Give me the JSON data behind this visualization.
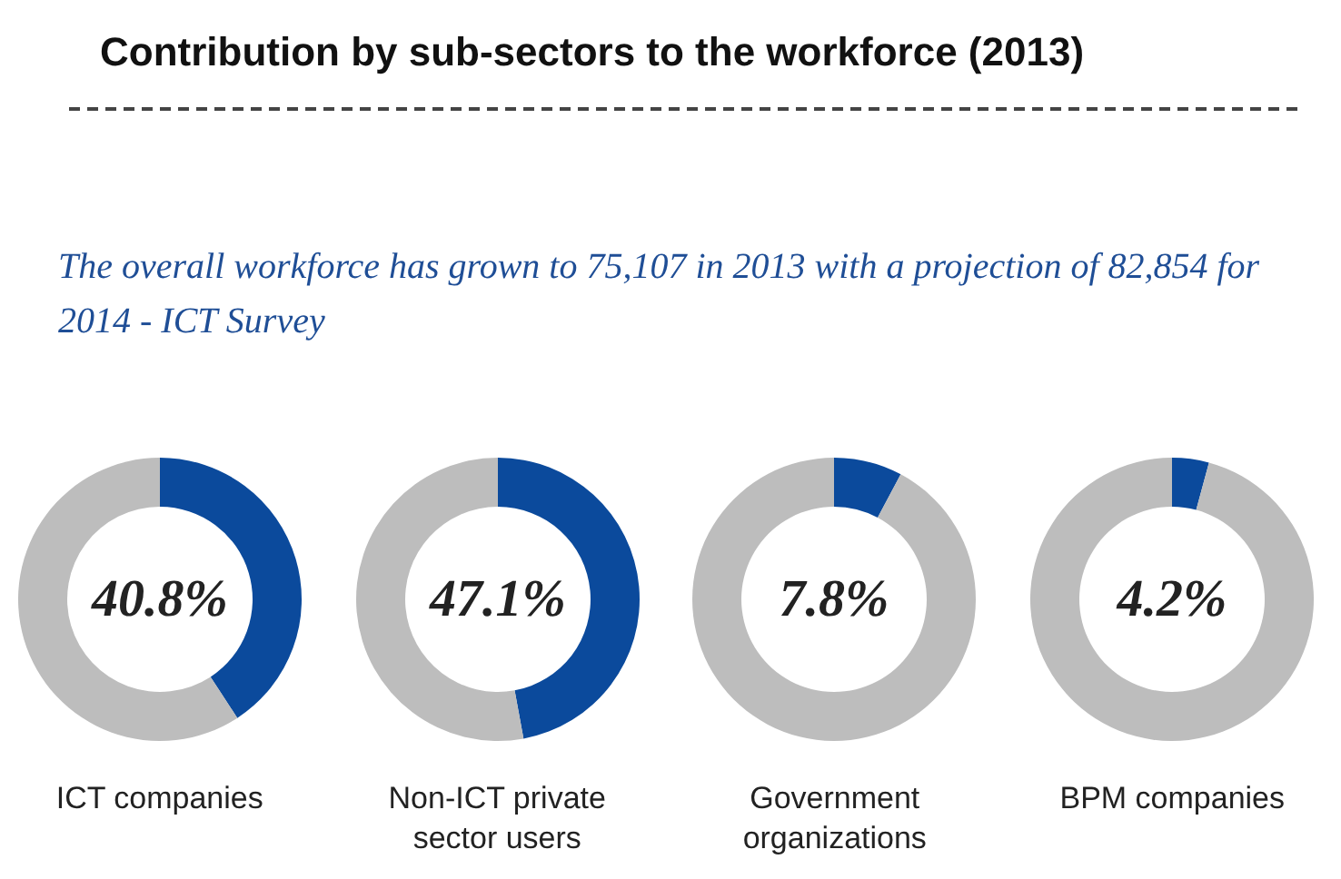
{
  "chart_data": [
    {
      "type": "other",
      "title": "Contribution by sub-sectors to the workforce (2013)",
      "subtitle": "The overall workforce has grown to 75,107 in 2013 with a projection of 82,854 for 2014 - ICT Survey"
    },
    {
      "type": "donut",
      "title": "ICT companies",
      "categories": [
        null,
        null
      ],
      "values": [
        40.8,
        59.2
      ],
      "colors": [
        "#0b4a9c",
        "#bdbdbd"
      ],
      "annotations": [
        "40.8%"
      ]
    },
    {
      "type": "donut",
      "title": "Non-ICT private sector users",
      "categories": [
        null,
        null
      ],
      "values": [
        47.1,
        52.9
      ],
      "colors": [
        "#0b4a9c",
        "#bdbdbd"
      ],
      "annotations": [
        "47.1%"
      ]
    },
    {
      "type": "donut",
      "title": "Government organizations",
      "categories": [
        null,
        null
      ],
      "values": [
        7.8,
        92.2
      ],
      "colors": [
        "#0b4a9c",
        "#bdbdbd"
      ],
      "annotations": [
        "7.8%"
      ]
    },
    {
      "type": "donut",
      "title": "BPM companies",
      "categories": [
        null,
        null
      ],
      "values": [
        4.2,
        95.8
      ],
      "colors": [
        "#0b4a9c",
        "#bdbdbd"
      ],
      "annotations": [
        "4.2%"
      ]
    }
  ]
}
